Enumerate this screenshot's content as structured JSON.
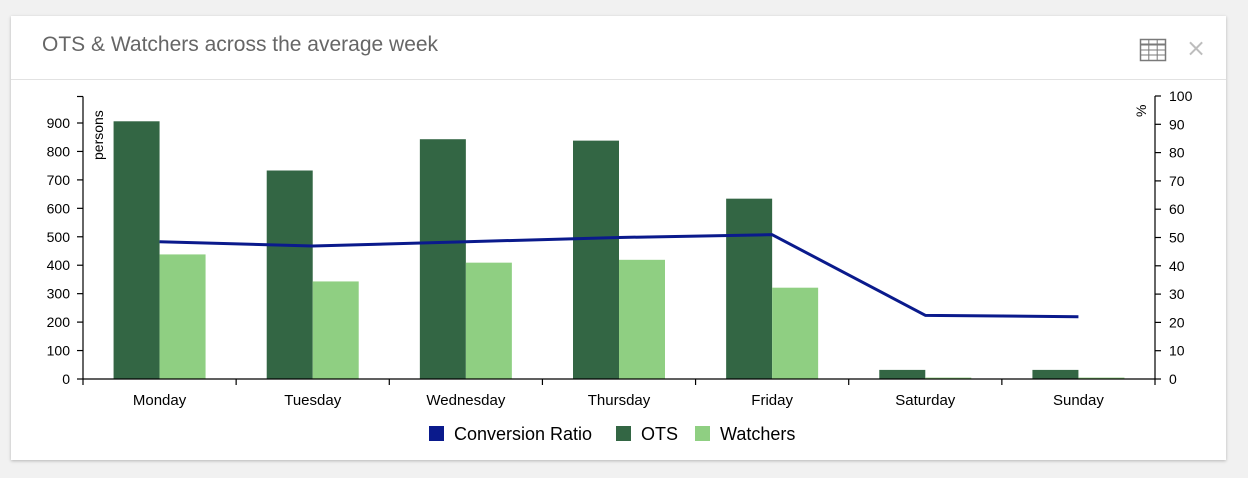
{
  "card": {
    "title": "OTS & Watchers across the average week",
    "table_icon": "table-grid-icon",
    "close_icon": "close-icon",
    "close_glyph": "×"
  },
  "colors": {
    "conversion": "#0a1a8c",
    "ots": "#336644",
    "watchers": "#8fcf82",
    "axis": "#000000"
  },
  "chart_data": {
    "type": "bar",
    "title": "OTS & Watchers across the average week",
    "categories": [
      "Monday",
      "Tuesday",
      "Wednesday",
      "Thursday",
      "Friday",
      "Saturday",
      "Sunday"
    ],
    "series": [
      {
        "name": "OTS",
        "type": "bar",
        "axis": "left",
        "values": [
          906,
          733,
          843,
          838,
          634,
          32,
          32
        ]
      },
      {
        "name": "Watchers",
        "type": "bar",
        "axis": "left",
        "values": [
          438,
          343,
          409,
          419,
          321,
          5,
          5
        ]
      },
      {
        "name": "Conversion Ratio",
        "type": "line",
        "axis": "right",
        "values": [
          48.5,
          47,
          48.5,
          50,
          51,
          22.5,
          22
        ]
      }
    ],
    "legend": [
      "Conversion Ratio",
      "OTS",
      "Watchers"
    ],
    "legend_position": "bottom",
    "ylabel": "persons",
    "y2label": "%",
    "ylim": [
      0,
      1000
    ],
    "y2lim": [
      0,
      100
    ],
    "yticks": [
      0,
      100,
      200,
      300,
      400,
      500,
      600,
      700,
      800,
      900
    ],
    "y2ticks": [
      0,
      10,
      20,
      30,
      40,
      50,
      60,
      70,
      80,
      90,
      100
    ],
    "grid": false
  }
}
